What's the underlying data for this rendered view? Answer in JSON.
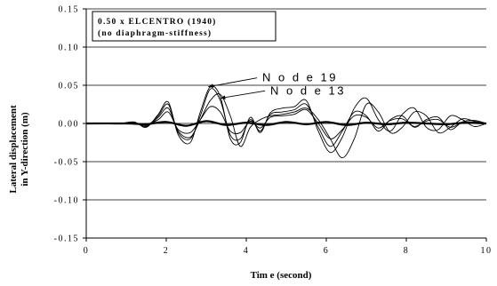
{
  "chart_data": {
    "type": "line",
    "title_lines": [
      "0.50 x ELCENTRO (1940)",
      "(no diaphragm-stiffness)"
    ],
    "xlabel": "Tim e (second)",
    "ylabel_lines": [
      "Lateral displacement",
      "in Y-direction (m)"
    ],
    "xlim": [
      0,
      10
    ],
    "ylim": [
      -0.15,
      0.15
    ],
    "x_ticks": [
      0,
      2,
      4,
      6,
      8,
      10
    ],
    "x_tick_labels": [
      "0",
      "2",
      "4",
      "6",
      "8",
      "10"
    ],
    "y_ticks": [
      0.15,
      0.1,
      0.05,
      0.0,
      -0.05,
      -0.1,
      -0.15
    ],
    "y_tick_labels": [
      "0.15",
      "0.10",
      "0.05",
      "0.00",
      "-0.05",
      "-0.10",
      "-0.15"
    ],
    "grid": "horizontal",
    "legend_placement": "top-left",
    "annotations": [
      {
        "text": "N o d e 19",
        "point_to": [
          3.05,
          0.048
        ],
        "text_at": [
          4.4,
          0.055
        ]
      },
      {
        "text": "N o d e 13",
        "point_to": [
          3.35,
          0.033
        ],
        "text_at": [
          4.6,
          0.038
        ]
      }
    ],
    "series": [
      {
        "label_style": "thin",
        "x": [
          0,
          0.8,
          1.2,
          1.5,
          1.8,
          2.05,
          2.3,
          2.6,
          2.85,
          3.1,
          3.35,
          3.6,
          3.85,
          4.1,
          4.35,
          4.6,
          4.9,
          5.2,
          5.5,
          5.8,
          6.1,
          6.4,
          6.7,
          7.0,
          7.3,
          7.6,
          7.9,
          8.2,
          8.5,
          8.8,
          9.1,
          9.4,
          9.7,
          10.0
        ],
        "y": [
          0,
          0,
          0.001,
          -0.003,
          0.01,
          0.025,
          -0.012,
          -0.02,
          0.01,
          0.045,
          0.03,
          -0.015,
          -0.02,
          0.005,
          -0.01,
          0.012,
          0.015,
          0.018,
          0.025,
          -0.005,
          -0.03,
          -0.01,
          0.015,
          0.01,
          -0.01,
          0.005,
          0.01,
          -0.005,
          0.005,
          0.008,
          -0.008,
          0.002,
          0.004,
          0
        ]
      },
      {
        "label_style": "thin",
        "x": [
          0,
          0.8,
          1.2,
          1.5,
          1.8,
          2.05,
          2.3,
          2.6,
          2.85,
          3.1,
          3.35,
          3.6,
          3.85,
          4.1,
          4.35,
          4.6,
          4.9,
          5.2,
          5.5,
          5.8,
          6.1,
          6.4,
          6.7,
          7.0,
          7.3,
          7.6,
          7.9,
          8.2,
          8.5,
          8.8,
          9.1,
          9.4,
          9.7,
          10.0
        ],
        "y": [
          0,
          0,
          0.002,
          -0.005,
          0.012,
          0.028,
          -0.015,
          -0.025,
          0.015,
          0.048,
          0.035,
          -0.02,
          -0.025,
          0.008,
          -0.012,
          0.014,
          0.02,
          0.022,
          0.03,
          -0.01,
          -0.038,
          -0.018,
          0.02,
          0.033,
          0.005,
          -0.01,
          0.012,
          0.02,
          -0.005,
          -0.008,
          0.01,
          0.005,
          -0.004,
          0
        ]
      },
      {
        "label_style": "thin",
        "x": [
          0,
          0.8,
          1.2,
          1.5,
          1.8,
          2.05,
          2.3,
          2.6,
          2.85,
          3.1,
          3.35,
          3.6,
          3.85,
          4.1,
          4.35,
          4.6,
          4.9,
          5.2,
          5.5,
          5.8,
          6.1,
          6.4,
          6.7,
          7.0,
          7.3,
          7.6,
          7.9,
          8.2,
          8.5,
          8.8,
          9.1,
          9.4,
          9.7,
          10.0
        ],
        "y": [
          0,
          0,
          0.001,
          -0.004,
          0.008,
          0.02,
          -0.01,
          -0.018,
          0.005,
          0.03,
          0.038,
          0.01,
          -0.03,
          -0.005,
          0.005,
          0.01,
          0.012,
          0.015,
          0.02,
          0.005,
          -0.02,
          -0.045,
          -0.02,
          0.025,
          0.015,
          -0.012,
          -0.005,
          0.015,
          0.01,
          -0.012,
          -0.005,
          0.006,
          0.003,
          0
        ]
      },
      {
        "label_style": "thin",
        "x": [
          0,
          0.8,
          1.2,
          1.5,
          1.8,
          2.05,
          2.3,
          2.6,
          2.85,
          3.1,
          3.35,
          3.6,
          3.85,
          4.1,
          4.35,
          4.6,
          4.9,
          5.2,
          5.5,
          5.8,
          6.1,
          6.4,
          6.7,
          7.0,
          7.3,
          7.6,
          7.9,
          8.2,
          8.5,
          8.8,
          9.1,
          9.4,
          9.7,
          10.0
        ],
        "y": [
          0,
          0,
          0.0,
          -0.002,
          0.005,
          0.015,
          -0.008,
          -0.012,
          0.005,
          0.022,
          0.015,
          -0.01,
          -0.012,
          0.003,
          -0.006,
          0.008,
          0.01,
          0.012,
          0.018,
          0.0,
          -0.02,
          -0.008,
          0.01,
          0.008,
          -0.006,
          0.004,
          0.006,
          -0.004,
          0.003,
          0.005,
          -0.005,
          0.001,
          0.002,
          0
        ]
      },
      {
        "label_style": "thick",
        "x": [
          0,
          1.0,
          1.5,
          2.0,
          2.5,
          3.0,
          3.5,
          4.0,
          4.5,
          5.0,
          5.5,
          6.0,
          6.5,
          7.0,
          7.5,
          8.0,
          8.5,
          9.0,
          9.5,
          10.0
        ],
        "y": [
          0,
          0,
          -0.001,
          0.002,
          -0.003,
          0.003,
          -0.002,
          0.001,
          -0.002,
          0.002,
          -0.001,
          0.002,
          -0.002,
          0.001,
          -0.001,
          0.001,
          0,
          -0.001,
          0.001,
          0
        ]
      }
    ]
  }
}
